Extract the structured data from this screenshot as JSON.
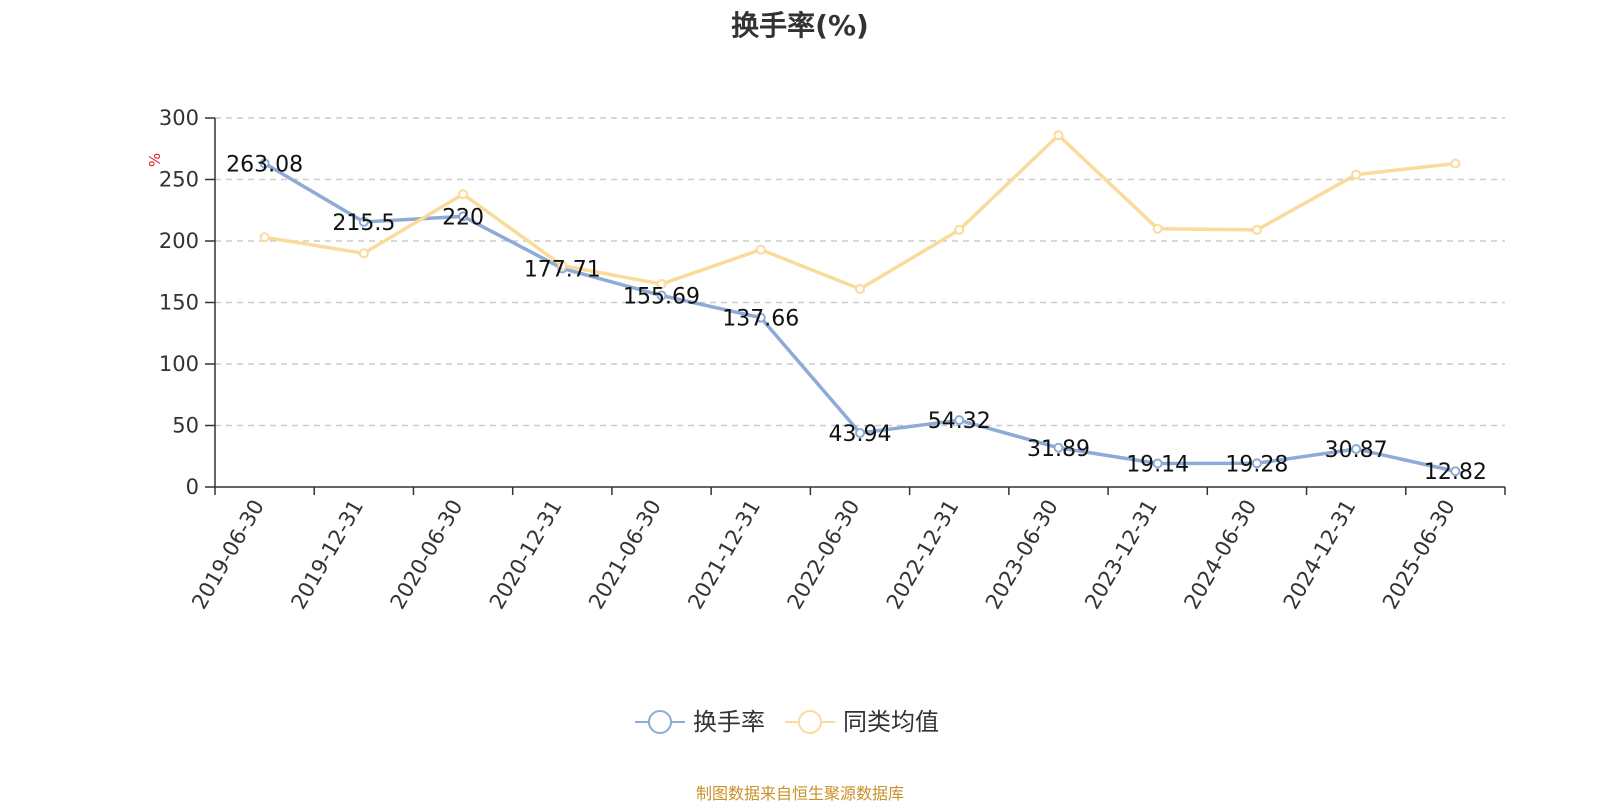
{
  "title": "换手率(%)",
  "source": "制图数据来自恒生聚源数据库",
  "colors": {
    "series1": "#8eabd7",
    "series2": "#fbdb9b",
    "axis": "#333333",
    "grid": "#cccccc",
    "unit": "#e02020"
  },
  "chart_data": {
    "type": "line",
    "title": "换手率(%)",
    "ylabel": "%",
    "ylim": [
      0,
      300
    ],
    "yticks": [
      0,
      50,
      100,
      150,
      200,
      250,
      300
    ],
    "grid": true,
    "legend_position": "bottom-center",
    "categories": [
      "2019-06-30",
      "2019-12-31",
      "2020-06-30",
      "2020-12-31",
      "2021-06-30",
      "2021-12-31",
      "2022-06-30",
      "2022-12-31",
      "2023-06-30",
      "2023-12-31",
      "2024-06-30",
      "2024-12-31",
      "2025-06-30"
    ],
    "series": [
      {
        "name": "换手率",
        "color": "#8eabd7",
        "labels": true,
        "values": [
          263.08,
          215.5,
          220,
          177.71,
          155.69,
          137.66,
          43.94,
          54.32,
          31.89,
          19.14,
          19.28,
          30.87,
          12.82
        ]
      },
      {
        "name": "同类均值",
        "color": "#fbdb9b",
        "labels": false,
        "values": [
          203,
          190,
          238,
          180,
          165,
          193,
          161,
          209,
          286,
          210,
          209,
          254,
          263
        ]
      }
    ]
  }
}
